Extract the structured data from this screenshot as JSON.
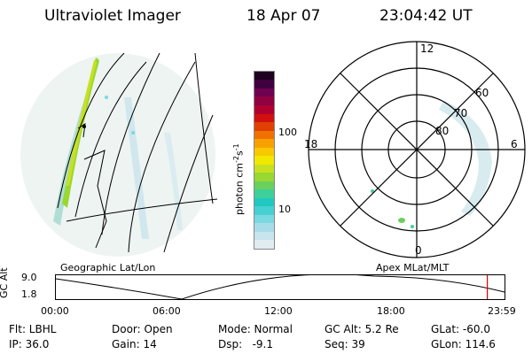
{
  "header": {
    "title": "Ultraviolet Imager",
    "date": "18 Apr 07",
    "time": "23:04:42 UT"
  },
  "left_panel": {
    "label": "Geographic Lat/Lon"
  },
  "right_panel": {
    "label": "Apex MLat/MLT",
    "mlt_labels": [
      "12",
      "18",
      "6",
      "0"
    ],
    "mlat_labels": [
      "60",
      "70",
      "80"
    ]
  },
  "colorbar": {
    "unit_label": "photon cm",
    "unit_exp1": "-2",
    "unit_mid": "s",
    "unit_exp2": "-1",
    "tick_labels": [
      "100",
      "10"
    ],
    "colors": [
      "#e0ecf0",
      "#c8e4ec",
      "#a6dce8",
      "#7ad8e0",
      "#46d0d4",
      "#20c8c0",
      "#3ed09a",
      "#6ad05c",
      "#98d830",
      "#c8e020",
      "#f0e800",
      "#f8c800",
      "#f8a000",
      "#f07000",
      "#e04000",
      "#d01010",
      "#b00030",
      "#900040",
      "#700050",
      "#400040",
      "#200020"
    ]
  },
  "altitude_strip": {
    "axis_label": "GC Alt",
    "y_ticks": [
      "9.0",
      "1.8"
    ],
    "time_ticks": [
      "00:00",
      "06:00",
      "12:00",
      "18:00",
      "23:59"
    ],
    "current_marker_time_hours": 23.08
  },
  "status": {
    "row1": [
      {
        "key": "flt",
        "text": "Flt: LBHL"
      },
      {
        "key": "door",
        "text": "Door: Open"
      },
      {
        "key": "mode",
        "text": "Mode: Normal"
      },
      {
        "key": "gcalt",
        "text": "GC Alt: 5.2 Re"
      },
      {
        "key": "glat",
        "text": "GLat: -60.0"
      }
    ],
    "row2": [
      {
        "key": "ip",
        "text": "IP: 36.0"
      },
      {
        "key": "gain",
        "text": "Gain: 14"
      },
      {
        "key": "dsp",
        "text": "Dsp:   -9.1"
      },
      {
        "key": "seq",
        "text": "Seq: 39"
      },
      {
        "key": "glon",
        "text": "GLon: 114.6"
      }
    ]
  }
}
